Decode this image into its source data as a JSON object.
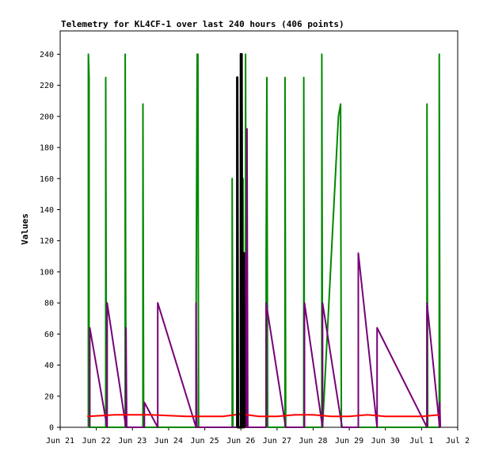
{
  "chart_data": {
    "type": "line",
    "title": "Telemetry for KL4CF-1 over last 240 hours (406 points)",
    "xlabel": "",
    "ylabel": "Values",
    "x_ticks": [
      "Jun 21",
      "Jun 22",
      "Jun 23",
      "Jun 24",
      "Jun 25",
      "Jun 26",
      "Jun 27",
      "Jun 28",
      "Jun 29",
      "Jun 30",
      "Jul 1",
      "Jul 2"
    ],
    "y_ticks": [
      0,
      20,
      40,
      60,
      80,
      100,
      120,
      140,
      160,
      180,
      200,
      220,
      240
    ],
    "xlim": [
      0,
      11
    ],
    "ylim": [
      0,
      255
    ],
    "grid": false,
    "legend": "none",
    "series": [
      {
        "color": "#008800",
        "points": [
          [
            0.78,
            0
          ],
          [
            0.78,
            240
          ],
          [
            0.8,
            225
          ],
          [
            0.8,
            0
          ],
          [
            1.26,
            0
          ],
          [
            1.26,
            225
          ],
          [
            1.28,
            0
          ],
          [
            1.8,
            0
          ],
          [
            1.8,
            240
          ],
          [
            1.82,
            0
          ],
          [
            2.29,
            0
          ],
          [
            2.29,
            208
          ],
          [
            2.31,
            0
          ],
          [
            3.76,
            0
          ],
          [
            3.76,
            64
          ],
          [
            3.79,
            240
          ],
          [
            3.81,
            240
          ],
          [
            3.83,
            0
          ],
          [
            4.76,
            0
          ],
          [
            4.76,
            160
          ],
          [
            4.78,
            0
          ],
          [
            5.06,
            0
          ],
          [
            5.06,
            160
          ],
          [
            5.08,
            0
          ],
          [
            5.13,
            0
          ],
          [
            5.13,
            240
          ],
          [
            5.15,
            0
          ],
          [
            5.7,
            0
          ],
          [
            5.7,
            112
          ],
          [
            5.72,
            225
          ],
          [
            5.74,
            0
          ],
          [
            6.22,
            0
          ],
          [
            6.22,
            225
          ],
          [
            6.24,
            0
          ],
          [
            6.74,
            0
          ],
          [
            6.74,
            225
          ],
          [
            6.76,
            0
          ],
          [
            7.24,
            0
          ],
          [
            7.24,
            240
          ],
          [
            7.26,
            0
          ],
          [
            7.7,
            200
          ],
          [
            7.76,
            208
          ],
          [
            7.78,
            0
          ],
          [
            10.15,
            0
          ],
          [
            10.15,
            208
          ],
          [
            10.17,
            0
          ],
          [
            10.49,
            0
          ],
          [
            10.49,
            240
          ],
          [
            10.51,
            0
          ]
        ]
      },
      {
        "color": "#770077",
        "points": [
          [
            0.82,
            0
          ],
          [
            0.82,
            64
          ],
          [
            1.3,
            0
          ],
          [
            1.3,
            80
          ],
          [
            1.82,
            0
          ],
          [
            1.82,
            64
          ],
          [
            1.84,
            0
          ],
          [
            2.33,
            0
          ],
          [
            2.33,
            16
          ],
          [
            2.7,
            0
          ],
          [
            2.7,
            80
          ],
          [
            3.76,
            0
          ],
          [
            3.76,
            80
          ],
          [
            3.78,
            0
          ],
          [
            5.12,
            0
          ],
          [
            5.12,
            112
          ],
          [
            5.14,
            0
          ],
          [
            5.17,
            0
          ],
          [
            5.17,
            192
          ],
          [
            5.19,
            0
          ],
          [
            5.7,
            0
          ],
          [
            5.7,
            80
          ],
          [
            6.24,
            0
          ],
          [
            6.76,
            0
          ],
          [
            6.76,
            80
          ],
          [
            7.26,
            0
          ],
          [
            7.26,
            80
          ],
          [
            7.8,
            0
          ],
          [
            8.25,
            0
          ],
          [
            8.25,
            112
          ],
          [
            8.77,
            0
          ],
          [
            8.77,
            64
          ],
          [
            10.15,
            0
          ],
          [
            10.15,
            80
          ],
          [
            10.5,
            0
          ],
          [
            10.5,
            16
          ],
          [
            10.52,
            0
          ]
        ]
      },
      {
        "color": "#ff0000",
        "points": [
          [
            0.75,
            7
          ],
          [
            1.5,
            8
          ],
          [
            2.5,
            8
          ],
          [
            3.5,
            7
          ],
          [
            4.5,
            7
          ],
          [
            5.0,
            8.5
          ],
          [
            5.5,
            7
          ],
          [
            6.0,
            7
          ],
          [
            6.5,
            8
          ],
          [
            7.0,
            8
          ],
          [
            7.5,
            7
          ],
          [
            8.0,
            7
          ],
          [
            8.5,
            8
          ],
          [
            9.0,
            7
          ],
          [
            10.0,
            7
          ],
          [
            10.5,
            8
          ]
        ]
      },
      {
        "color": "#000000",
        "points": [
          [
            4.9,
            0
          ],
          [
            4.9,
            225
          ],
          [
            4.92,
            0
          ],
          [
            5.0,
            0
          ],
          [
            5.0,
            240
          ],
          [
            5.02,
            240
          ],
          [
            5.04,
            0
          ],
          [
            5.08,
            0
          ],
          [
            5.08,
            112
          ],
          [
            5.1,
            0
          ]
        ]
      }
    ]
  }
}
